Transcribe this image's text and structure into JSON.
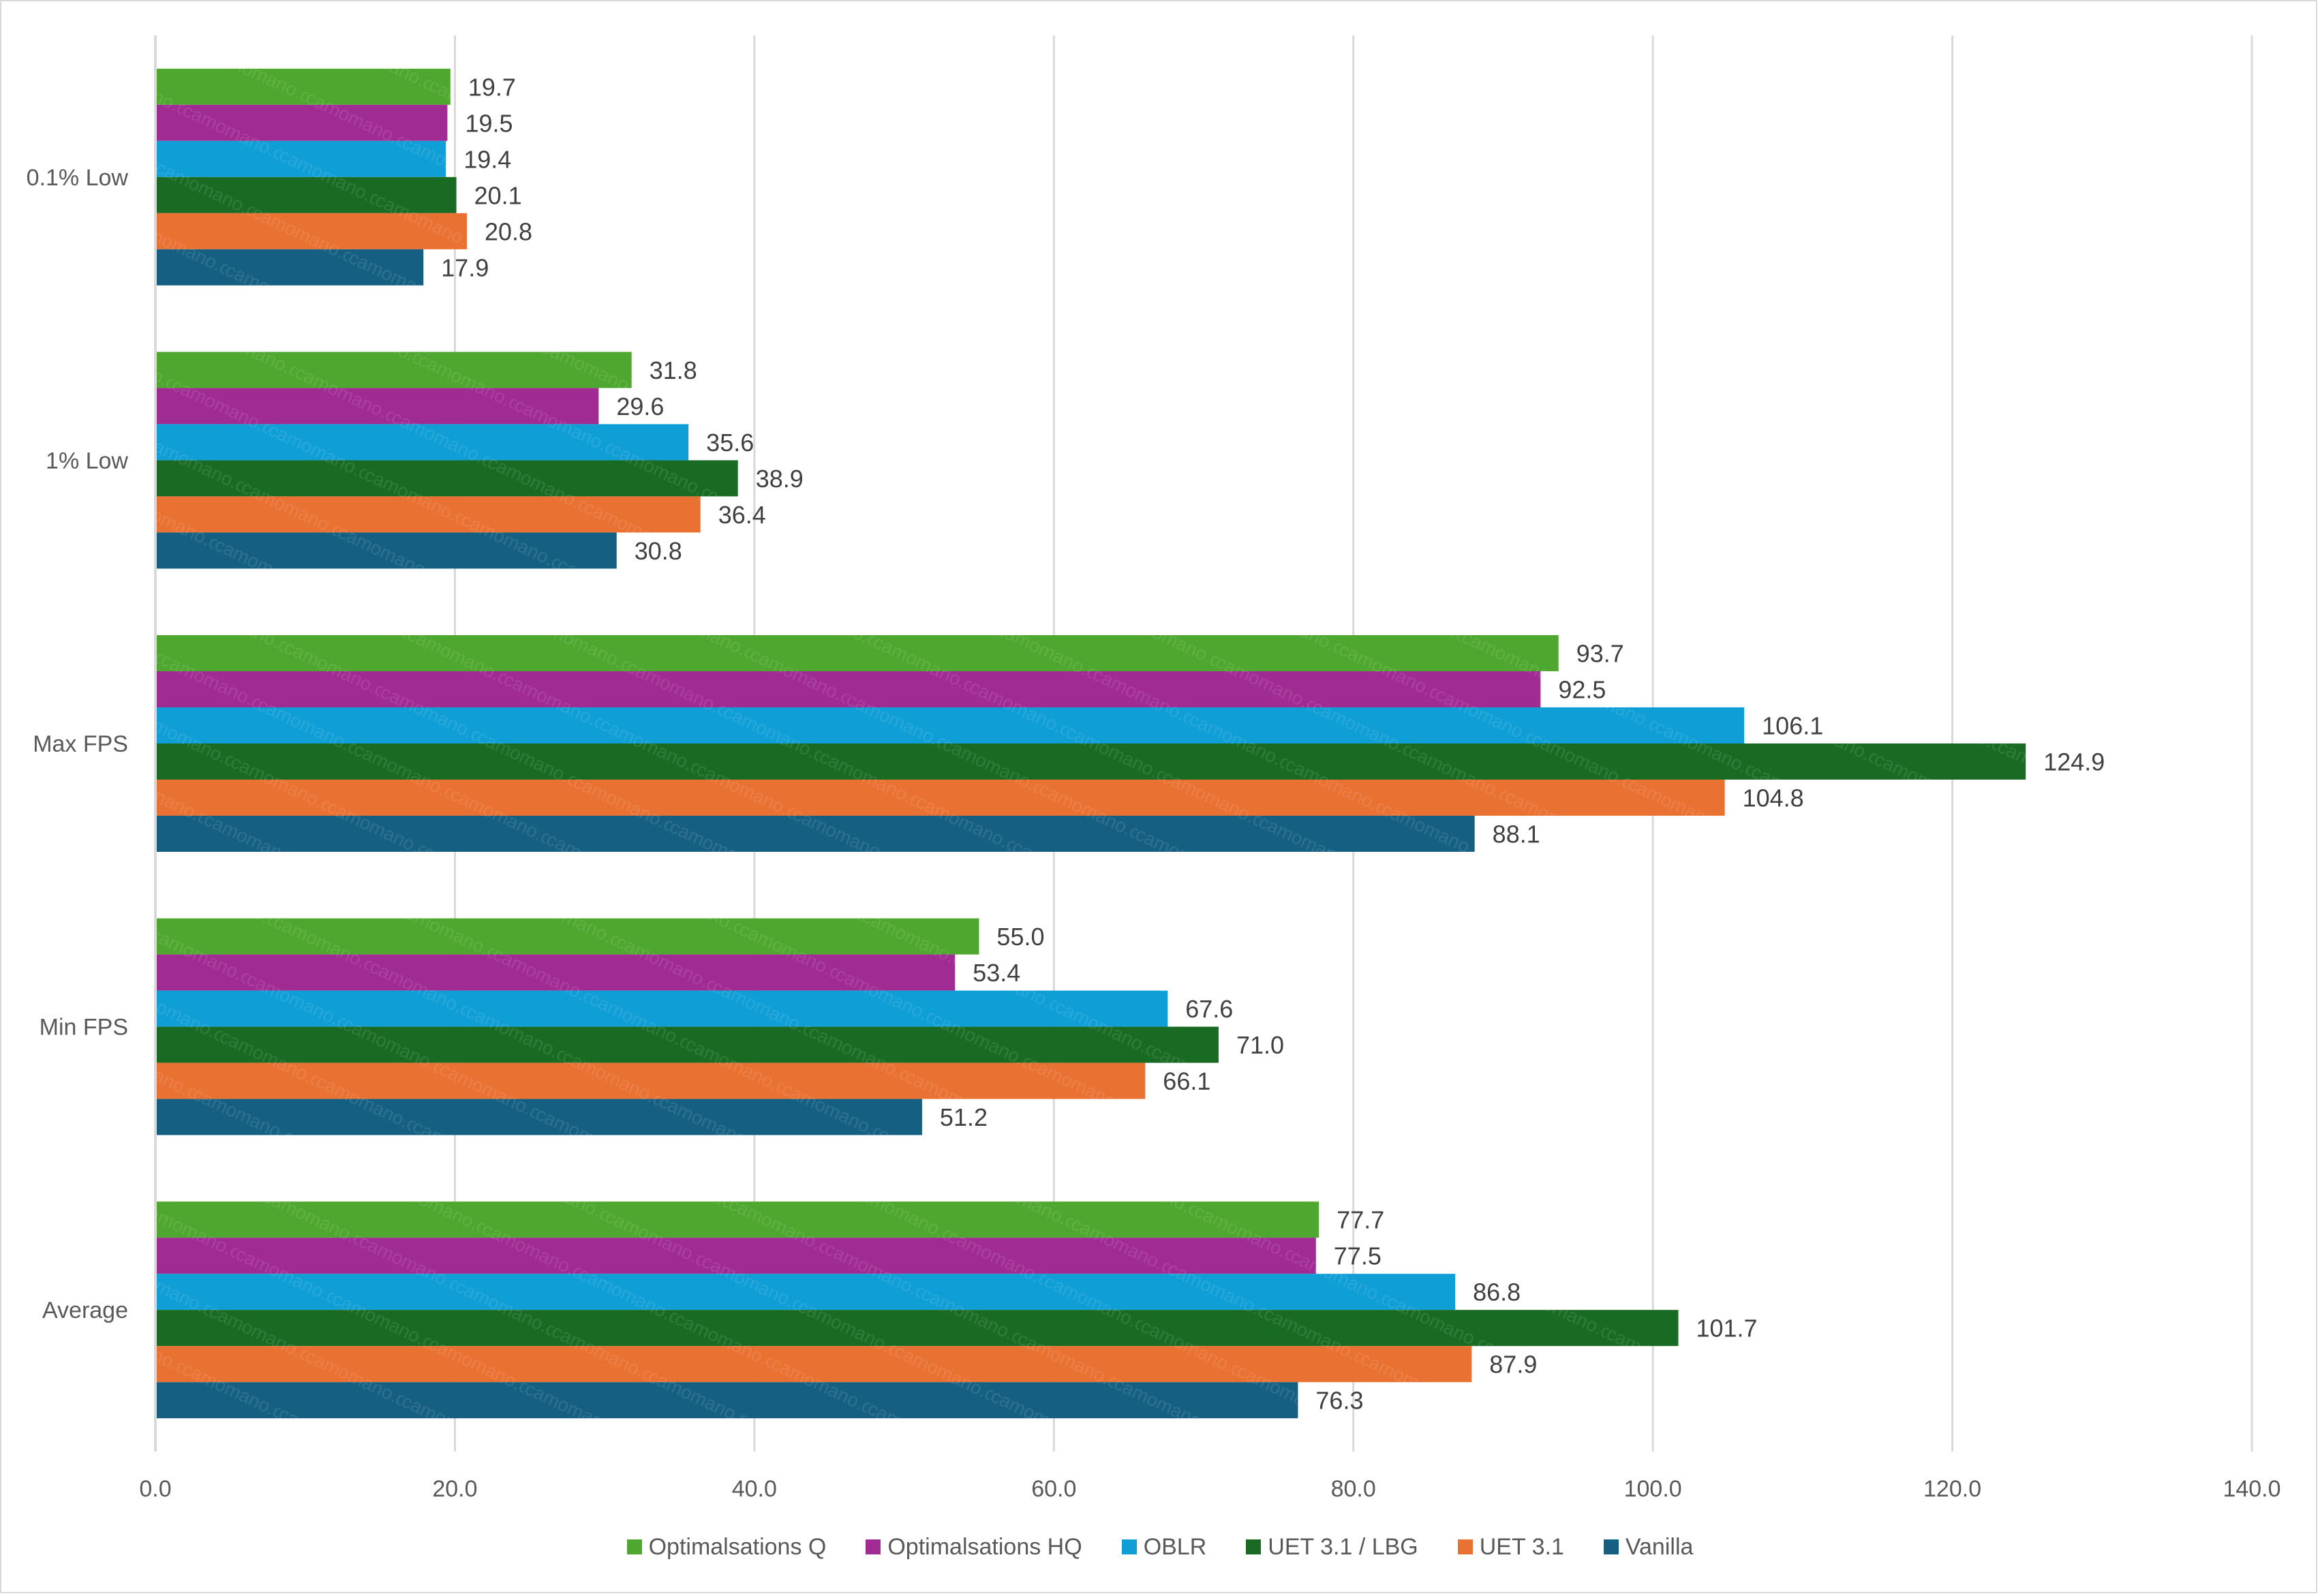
{
  "chart_data": {
    "type": "bar",
    "orientation": "horizontal",
    "title": "",
    "xlabel": "",
    "ylabel": "",
    "xlim": [
      0,
      140
    ],
    "x_ticks": [
      "0.0",
      "20.0",
      "40.0",
      "60.0",
      "80.0",
      "100.0",
      "120.0",
      "140.0"
    ],
    "grid": true,
    "legend_position": "bottom",
    "watermark": "camomano.com",
    "categories": [
      "0.1% Low",
      "1% Low",
      "Max FPS",
      "Min FPS",
      "Average"
    ],
    "series": [
      {
        "name": "Optimalsations Q",
        "color": "#4ea72e",
        "values": [
          19.7,
          31.8,
          93.7,
          55.0,
          77.7
        ]
      },
      {
        "name": "Optimalsations HQ",
        "color": "#a02b93",
        "values": [
          19.5,
          29.6,
          92.5,
          53.4,
          77.5
        ]
      },
      {
        "name": "OBLR",
        "color": "#0f9ed5",
        "values": [
          19.4,
          35.6,
          106.1,
          67.6,
          86.8
        ]
      },
      {
        "name": "UET 3.1 / LBG",
        "color": "#196b24",
        "values": [
          20.1,
          38.9,
          124.9,
          71.0,
          101.7
        ]
      },
      {
        "name": "UET 3.1",
        "color": "#e97132",
        "values": [
          20.8,
          36.4,
          104.8,
          66.1,
          87.9
        ]
      },
      {
        "name": "Vanilla",
        "color": "#156082",
        "values": [
          17.9,
          30.8,
          88.1,
          51.2,
          76.3
        ]
      }
    ]
  }
}
